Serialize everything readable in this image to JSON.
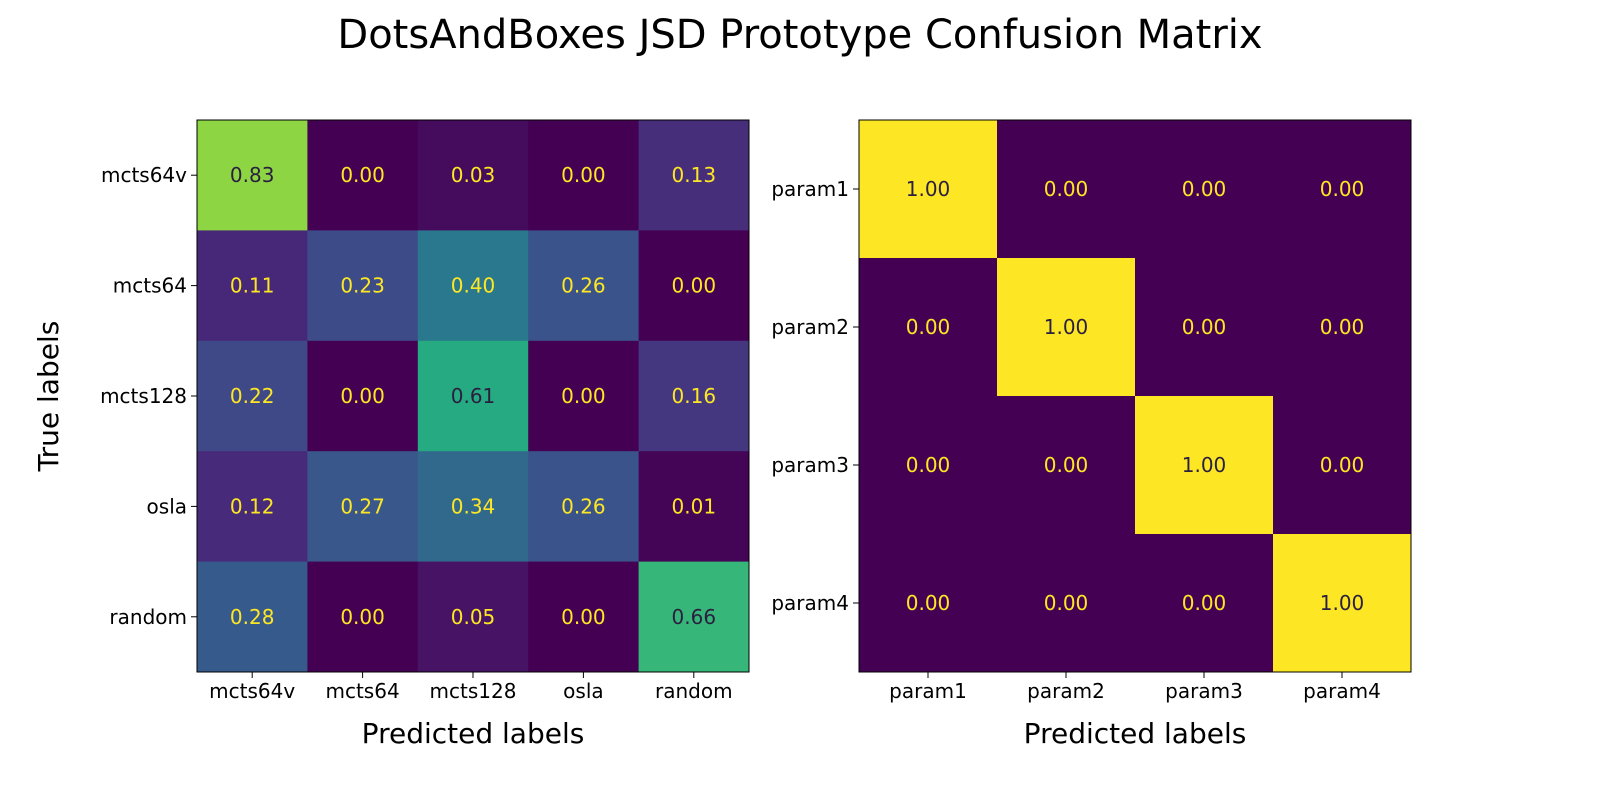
{
  "figure": {
    "title": "DotsAndBoxes JSD Prototype Confusion Matrix"
  },
  "colors": {
    "low": "#440154",
    "high": "#fde725",
    "text_light": "#fde725",
    "text_dark": "#2a1f3f"
  },
  "chart_data": [
    {
      "type": "heatmap",
      "title": "",
      "xlabel": "Predicted labels",
      "ylabel": "True labels",
      "x_categories": [
        "mcts64v",
        "mcts64",
        "mcts128",
        "osla",
        "random"
      ],
      "y_categories": [
        "mcts64v",
        "mcts64",
        "mcts128",
        "osla",
        "random"
      ],
      "values": [
        [
          0.83,
          0.0,
          0.03,
          0.0,
          0.13
        ],
        [
          0.11,
          0.23,
          0.4,
          0.26,
          0.0
        ],
        [
          0.22,
          0.0,
          0.61,
          0.0,
          0.16
        ],
        [
          0.12,
          0.27,
          0.34,
          0.26,
          0.01
        ],
        [
          0.28,
          0.0,
          0.05,
          0.0,
          0.66
        ]
      ],
      "value_format": "0.00",
      "colormap": "viridis",
      "vmin": 0.0,
      "vmax": 1.0,
      "grid": false,
      "colorbar": false
    },
    {
      "type": "heatmap",
      "title": "",
      "xlabel": "Predicted labels",
      "ylabel": "",
      "x_categories": [
        "param1",
        "param2",
        "param3",
        "param4"
      ],
      "y_categories": [
        "param1",
        "param2",
        "param3",
        "param4"
      ],
      "values": [
        [
          1.0,
          0.0,
          0.0,
          0.0
        ],
        [
          0.0,
          1.0,
          0.0,
          0.0
        ],
        [
          0.0,
          0.0,
          1.0,
          0.0
        ],
        [
          0.0,
          0.0,
          0.0,
          1.0
        ]
      ],
      "value_format": "0.00",
      "colormap": "viridis",
      "vmin": 0.0,
      "vmax": 1.0,
      "grid": false,
      "colorbar": false
    }
  ]
}
